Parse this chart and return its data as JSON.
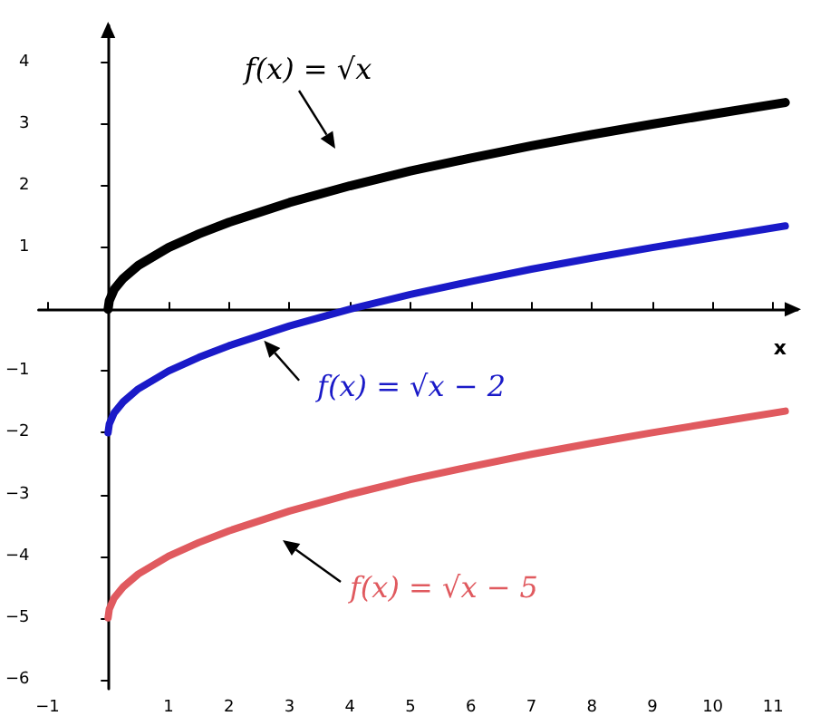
{
  "chart_data": {
    "type": "line",
    "xlabel": "x",
    "x": [
      0,
      0.02,
      0.1,
      0.25,
      0.5,
      1,
      1.5,
      2,
      3,
      4,
      5,
      6,
      7,
      8,
      9,
      10,
      11.2
    ],
    "series": [
      {
        "color": "#000000",
        "values": [
          0,
          0.14,
          0.32,
          0.5,
          0.71,
          1,
          1.22,
          1.41,
          1.73,
          2,
          2.24,
          2.45,
          2.65,
          2.83,
          3,
          3.16,
          3.35
        ]
      },
      {
        "color": "#1a1ac8",
        "values": [
          -2,
          -1.86,
          -1.68,
          -1.5,
          -1.29,
          -1,
          -0.78,
          -0.59,
          -0.27,
          0,
          0.24,
          0.45,
          0.65,
          0.83,
          1,
          1.16,
          1.35
        ]
      },
      {
        "color": "#e05a5f",
        "values": [
          -5,
          -4.86,
          -4.68,
          -4.5,
          -4.29,
          -4,
          -3.78,
          -3.59,
          -3.27,
          -3,
          -2.76,
          -2.55,
          -2.35,
          -2.17,
          -2,
          -1.84,
          -1.65
        ]
      }
    ],
    "annotations": [
      "f(x) = √x",
      {
        "text": "f(x) = √x − 2",
        "x": 2.5,
        "y": -0.42
      },
      "f(x) = √x − 5"
    ],
    "xlim": [
      -1.15,
      11.4
    ],
    "ylim": [
      -6.15,
      4.6
    ],
    "xticks": [
      -1,
      1,
      2,
      3,
      4,
      5,
      6,
      7,
      8,
      9,
      10,
      11
    ],
    "yticks": [
      -6,
      -5,
      -4,
      -3,
      -2,
      -1,
      1,
      2,
      3,
      4
    ],
    "grid": false,
    "marker": "none",
    "line_style": "solid"
  }
}
